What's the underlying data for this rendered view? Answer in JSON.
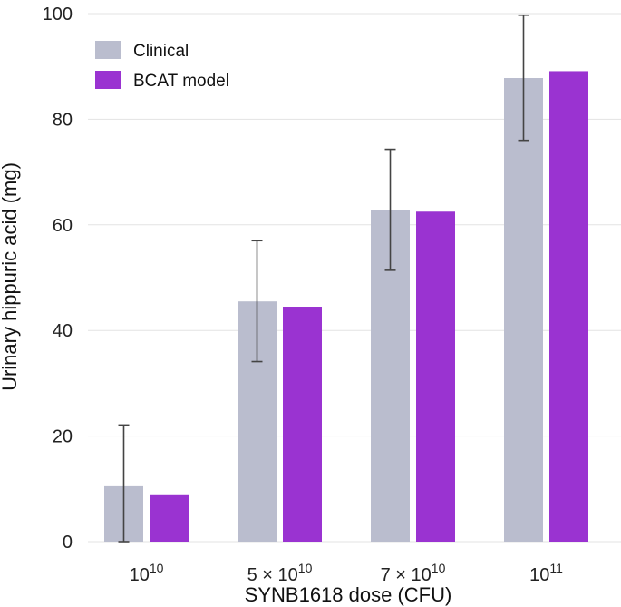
{
  "chart_data": {
    "type": "bar",
    "title": "",
    "xlabel": "SYNB1618 dose (CFU)",
    "ylabel": "Urinary hippuric acid (mg)",
    "ylim": [
      0,
      100
    ],
    "yticks": [
      0,
      20,
      40,
      60,
      80,
      100
    ],
    "grid": true,
    "legend_position": "top-left",
    "categories": [
      {
        "base": "10",
        "exp": "10",
        "mantissa": ""
      },
      {
        "base": "10",
        "exp": "10",
        "mantissa": "5 × "
      },
      {
        "base": "10",
        "exp": "10",
        "mantissa": "7 × "
      },
      {
        "base": "10",
        "exp": "11",
        "mantissa": ""
      }
    ],
    "series": [
      {
        "name": "Clinical",
        "color": "#babdce",
        "values": [
          10.5,
          45.5,
          62.8,
          87.8
        ],
        "error_low": [
          0.0,
          34.1,
          51.4,
          76.0
        ],
        "error_high": [
          22.1,
          57.0,
          74.3,
          99.7
        ]
      },
      {
        "name": "BCAT model",
        "color": "#9a33d1",
        "values": [
          8.8,
          44.5,
          62.5,
          89.1
        ]
      }
    ]
  }
}
